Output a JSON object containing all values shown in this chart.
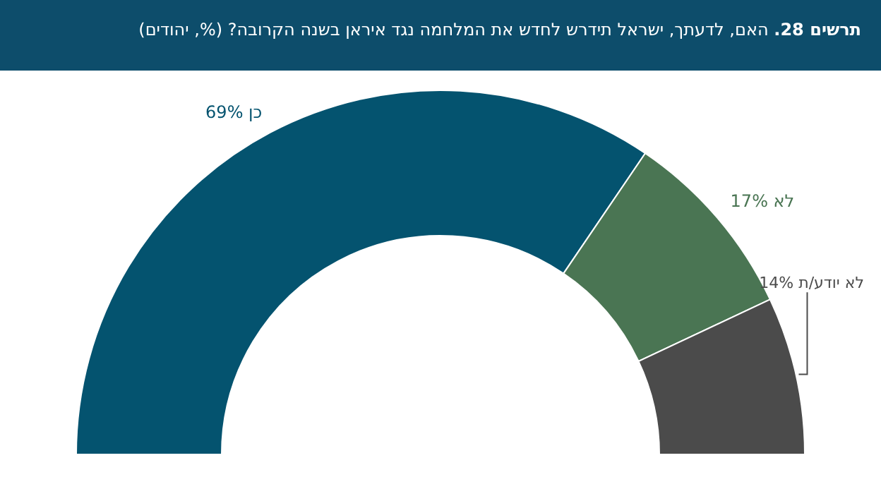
{
  "chart_data": {
    "type": "donut",
    "title": "תרשים 28.",
    "subtitle": "האם, לדעתך, ישראל תידרש לחדש את המלחמה נגד איראן בשנה הקרובה? (%, יהודים)",
    "categories": [
      "כן",
      "לא",
      "לא יודע/ת"
    ],
    "values": [
      69,
      17,
      14
    ],
    "value_labels": [
      "69%",
      "17%",
      "14%"
    ],
    "colors": [
      "#04536f",
      "#4a7553",
      "#4b4b4b"
    ]
  }
}
